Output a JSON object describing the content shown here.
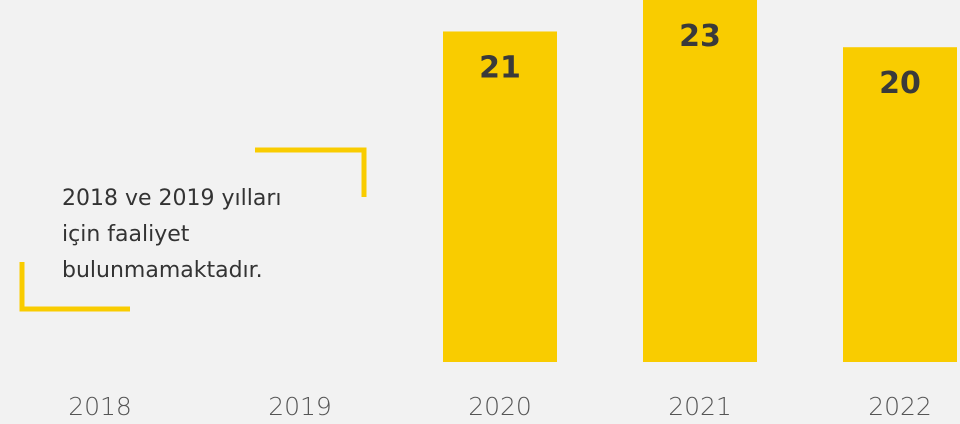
{
  "chart_data": {
    "type": "bar",
    "categories": [
      "2018",
      "2019",
      "2020",
      "2021",
      "2022"
    ],
    "values": [
      null,
      null,
      21,
      23,
      20
    ],
    "color": "#f9cc00",
    "ylim": [
      0,
      23
    ],
    "annotation": [
      "2018 ve 2019 yılları",
      "için faaliyet",
      "bulunmamaktadır."
    ]
  }
}
